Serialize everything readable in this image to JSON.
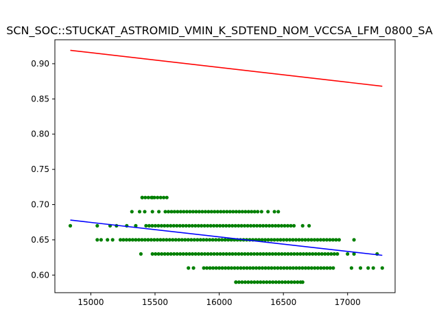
{
  "chart_data": {
    "type": "scatter",
    "title": "SCN_SOC::STUCKAT_ASTROMID_VMIN_K_SDTEND_NOM_VCCSA_LFM_0800_SA",
    "xlabel": "",
    "ylabel": "",
    "xlim": [
      14720,
      17370
    ],
    "ylim": [
      0.575,
      0.934
    ],
    "grid": false,
    "x_ticks": [
      15000,
      15500,
      16000,
      16500,
      17000
    ],
    "y_ticks": [
      0.6,
      0.65,
      0.7,
      0.75,
      0.8,
      0.85,
      0.9
    ],
    "colors": {
      "points": "#008000",
      "upper_line": "#ff0000",
      "fit_line": "#0000ff"
    },
    "series": [
      {
        "kind": "points",
        "bands": [
          {
            "y": 0.59,
            "x_min": 16130,
            "x_max": 16650,
            "x_extra": [
              16130,
              16650
            ]
          },
          {
            "y": 0.61,
            "x_min": 15880,
            "x_max": 16900,
            "x_extra": [
              15760,
              15800,
              17030,
              17100,
              17160,
              17200,
              17270
            ]
          },
          {
            "y": 0.63,
            "x_min": 15480,
            "x_max": 16920,
            "x_extra": [
              15390,
              17000,
              17050,
              17230
            ]
          },
          {
            "y": 0.65,
            "x_min": 15230,
            "x_max": 16950,
            "x_extra": [
              15050,
              15080,
              15130,
              15170,
              17050
            ]
          },
          {
            "y": 0.67,
            "x_min": 15430,
            "x_max": 16600,
            "x_extra": [
              14840,
              15050,
              15150,
              15200,
              15280,
              15350,
              16650,
              16700
            ]
          },
          {
            "y": 0.69,
            "x_min": 15580,
            "x_max": 16300,
            "x_extra": [
              15320,
              15380,
              15420,
              15480,
              15530,
              16330,
              16380,
              16430,
              16460
            ]
          },
          {
            "y": 0.71,
            "x_min": 15400,
            "x_max": 15600,
            "x_extra": [
              15400,
              15480
            ]
          }
        ]
      },
      {
        "kind": "line",
        "name_key": "upper_line",
        "x": [
          14840,
          17270
        ],
        "y": [
          0.919,
          0.868
        ]
      },
      {
        "kind": "line",
        "name_key": "fit_line",
        "x": [
          14840,
          17270
        ],
        "y": [
          0.678,
          0.628
        ]
      }
    ]
  }
}
